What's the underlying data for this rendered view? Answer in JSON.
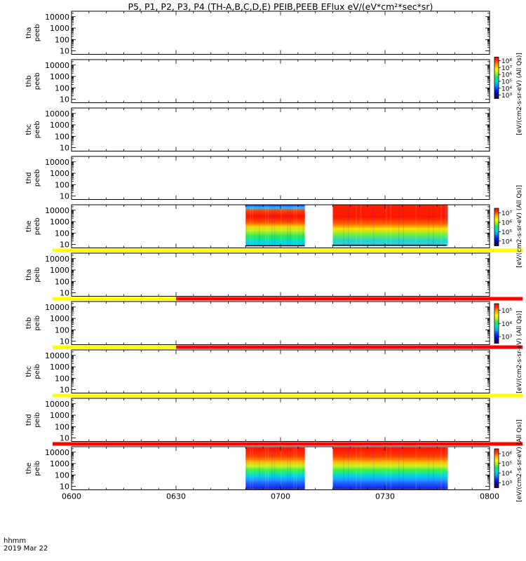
{
  "chart_data": {
    "type": "heatmap",
    "title": "P5, P1, P2, P3, P4 (TH-A,B,C,D,E) PEIB,PEEB EFlux eV/(eV*cm²*sec*sr)",
    "x_label_line1": "hhmm",
    "x_label_line2": "2019 Mar 22",
    "x_ticks": [
      "0600",
      "0630",
      "0700",
      "0730",
      "0800"
    ],
    "x_range": [
      "06:00",
      "08:00"
    ],
    "y_ticks": [
      "10",
      "100",
      "1000",
      "10000"
    ],
    "y_scale": "log",
    "y_range": [
      5,
      30000
    ],
    "panels": [
      {
        "probe": "tha",
        "product": "peeb",
        "data_intervals": []
      },
      {
        "probe": "thb",
        "product": "peeb",
        "data_intervals": []
      },
      {
        "probe": "thc",
        "product": "peeb",
        "data_intervals": []
      },
      {
        "probe": "thd",
        "product": "peeb",
        "data_intervals": []
      },
      {
        "probe": "the",
        "product": "peeb",
        "data_intervals": [
          [
            "06:50",
            "07:07"
          ],
          [
            "07:15",
            "07:48"
          ]
        ]
      },
      {
        "probe": "tha",
        "product": "peib",
        "data_intervals": []
      },
      {
        "probe": "thb",
        "product": "peib",
        "data_intervals": []
      },
      {
        "probe": "thc",
        "product": "peib",
        "data_intervals": []
      },
      {
        "probe": "thd",
        "product": "peib",
        "data_intervals": []
      },
      {
        "probe": "the",
        "product": "peib",
        "data_intervals": [
          [
            "06:50",
            "07:07"
          ],
          [
            "07:15",
            "07:48"
          ]
        ]
      }
    ],
    "status_bars": [
      {
        "after_panel": 5,
        "segments": [
          {
            "from": "06:00",
            "to": "08:00",
            "color": "#ffff00"
          }
        ]
      },
      {
        "after_panel": 6,
        "segments": [
          {
            "from": "06:00",
            "to": "06:30",
            "color": "#ffff00"
          },
          {
            "from": "06:30",
            "to": "08:00",
            "color": "#ff0000"
          }
        ]
      },
      {
        "after_panel": 7,
        "segments": [
          {
            "from": "06:00",
            "to": "06:30",
            "color": "#ffff00"
          },
          {
            "from": "06:30",
            "to": "08:00",
            "color": "#ff0000"
          }
        ]
      },
      {
        "after_panel": 8,
        "segments": [
          {
            "from": "06:00",
            "to": "08:00",
            "color": "#ffff00"
          }
        ]
      },
      {
        "after_panel": 9,
        "segments": [
          {
            "from": "06:00",
            "to": "08:00",
            "color": "#ff0000"
          }
        ]
      }
    ],
    "colorbars": [
      {
        "label": "[eV/(cm2-s-sr-eV) (All Qs)]",
        "ticks": [
          "10³",
          "10⁴",
          "10⁵",
          "10⁶",
          "10⁷",
          "10⁸"
        ]
      },
      {
        "label": "[eV/(cm2-s-sr-eV) (All Qs)]",
        "ticks": [
          "10⁴",
          "10⁵",
          "10⁶",
          "10⁷"
        ]
      },
      {
        "label": "[eV/(cm2-s-sr-eV) (All Qs)]",
        "ticks": [
          "10³",
          "10⁴",
          "10⁵"
        ]
      },
      {
        "label": "[eV/(cm2-s-sr-eV) (All Qs)]",
        "ticks": [
          "10³",
          "10⁴",
          "10⁵",
          "10⁶"
        ]
      }
    ],
    "colors": {
      "colormap": [
        "#3a0040",
        "#0000a0",
        "#0020ff",
        "#00a0ff",
        "#00e0d0",
        "#20e860",
        "#a0f020",
        "#ffff00",
        "#ffb000",
        "#ff4000",
        "#ff0000"
      ],
      "status_yellow": "#ffff00",
      "status_red": "#ff0000"
    }
  }
}
